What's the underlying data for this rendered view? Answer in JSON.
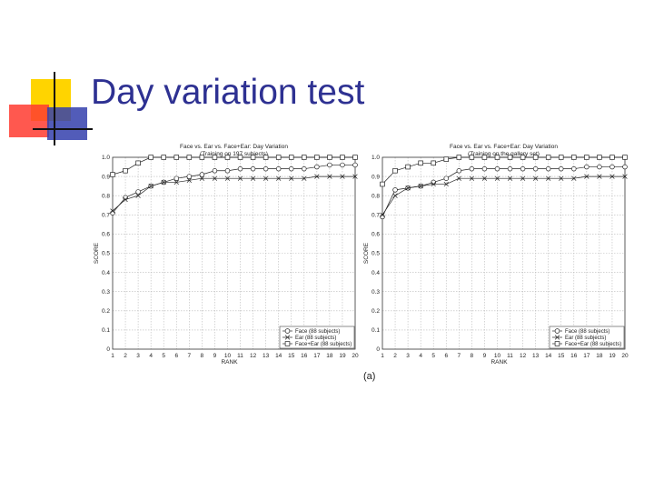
{
  "slide": {
    "title": "Day variation test",
    "caption": "(a)"
  },
  "colors": {
    "title": "#2e3192",
    "deco_yellow": "#ffd400",
    "deco_red": "#ff3b30",
    "deco_blue": "#3440ad",
    "axis": "#333333",
    "grid": "#b9b9b9"
  },
  "chart_data": [
    {
      "type": "line",
      "title": "Face vs. Ear vs. Face+Ear: Day Variation",
      "subtitle": "(Training on 197 subjects)",
      "xlabel": "RANK",
      "ylabel": "SCORE",
      "x": [
        1,
        2,
        3,
        4,
        5,
        6,
        7,
        8,
        9,
        10,
        11,
        12,
        13,
        14,
        15,
        16,
        17,
        18,
        19,
        20
      ],
      "xlim": [
        1,
        20
      ],
      "ylim": [
        0,
        1
      ],
      "yticks": [
        0,
        0.1,
        0.2,
        0.3,
        0.4,
        0.5,
        0.6,
        0.7,
        0.8,
        0.9,
        1.0
      ],
      "ytick_labels": [
        "0",
        "0.1",
        "0.2",
        "0.3",
        "0.4",
        "0.5",
        "0.6",
        "0.7",
        "0.8",
        "0.9",
        "1.0"
      ],
      "grid": true,
      "legend_position": "bottom-right",
      "series": [
        {
          "name": "Face (88 subjects)",
          "marker": "circle",
          "values": [
            0.71,
            0.79,
            0.82,
            0.85,
            0.87,
            0.89,
            0.9,
            0.91,
            0.93,
            0.93,
            0.94,
            0.94,
            0.94,
            0.94,
            0.94,
            0.94,
            0.95,
            0.96,
            0.96,
            0.96
          ]
        },
        {
          "name": "Ear (88 subjects)",
          "marker": "x",
          "values": [
            0.72,
            0.78,
            0.8,
            0.85,
            0.87,
            0.87,
            0.88,
            0.89,
            0.89,
            0.89,
            0.89,
            0.89,
            0.89,
            0.89,
            0.89,
            0.89,
            0.9,
            0.9,
            0.9,
            0.9
          ]
        },
        {
          "name": "Face+Ear (88 subjects)",
          "marker": "square",
          "values": [
            0.91,
            0.93,
            0.97,
            1.0,
            1.0,
            1.0,
            1.0,
            1.0,
            1.0,
            1.0,
            1.0,
            1.0,
            1.0,
            1.0,
            1.0,
            1.0,
            1.0,
            1.0,
            1.0,
            1.0
          ]
        }
      ]
    },
    {
      "type": "line",
      "title": "Face vs. Ear vs. Face+Ear: Day Variation",
      "subtitle": "(Training on the gallery set)",
      "xlabel": "RANK",
      "ylabel": "SCORE",
      "x": [
        1,
        2,
        3,
        4,
        5,
        6,
        7,
        8,
        9,
        10,
        11,
        12,
        13,
        14,
        15,
        16,
        17,
        18,
        19,
        20
      ],
      "xlim": [
        1,
        20
      ],
      "ylim": [
        0,
        1
      ],
      "yticks": [
        0,
        0.1,
        0.2,
        0.3,
        0.4,
        0.5,
        0.6,
        0.7,
        0.8,
        0.9,
        1.0
      ],
      "ytick_labels": [
        "0",
        "0.1",
        "0.2",
        "0.3",
        "0.4",
        "0.5",
        "0.6",
        "0.7",
        "0.8",
        "0.9",
        "1.0"
      ],
      "grid": true,
      "legend_position": "bottom-right",
      "series": [
        {
          "name": "Face (88 subjects)",
          "marker": "circle",
          "values": [
            0.69,
            0.83,
            0.84,
            0.85,
            0.87,
            0.89,
            0.93,
            0.94,
            0.94,
            0.94,
            0.94,
            0.94,
            0.94,
            0.94,
            0.94,
            0.94,
            0.95,
            0.95,
            0.95,
            0.95
          ]
        },
        {
          "name": "Ear (88 subjects)",
          "marker": "x",
          "values": [
            0.7,
            0.8,
            0.84,
            0.85,
            0.86,
            0.86,
            0.89,
            0.89,
            0.89,
            0.89,
            0.89,
            0.89,
            0.89,
            0.89,
            0.89,
            0.89,
            0.9,
            0.9,
            0.9,
            0.9
          ]
        },
        {
          "name": "Face+Ear (88 subjects)",
          "marker": "square",
          "values": [
            0.86,
            0.93,
            0.95,
            0.97,
            0.97,
            0.99,
            1.0,
            1.0,
            1.0,
            1.0,
            1.0,
            1.0,
            1.0,
            1.0,
            1.0,
            1.0,
            1.0,
            1.0,
            1.0,
            1.0
          ]
        }
      ]
    }
  ]
}
